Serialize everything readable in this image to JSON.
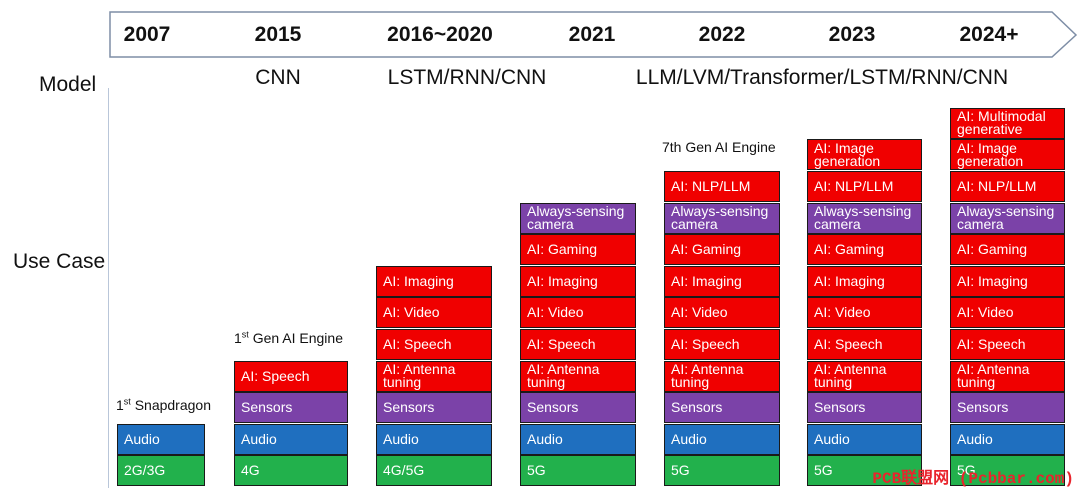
{
  "colors": {
    "connectivity": "#22b14c",
    "audio": "#1f6fbf",
    "sensors": "#7b42a8",
    "ai": "#f00000",
    "always_sensing": "#7b42a8"
  },
  "timeline": {
    "years": [
      "2007",
      "2015",
      "2016~2020",
      "2021",
      "2022",
      "2023",
      "2024+"
    ]
  },
  "labels": {
    "model": "Model",
    "use_case": "Use Case"
  },
  "models": [
    "CNN",
    "LSTM/RNN/CNN",
    "LLM/LVM/Transformer/LSTM/RNN/CNN"
  ],
  "captions": {
    "snapdragon_num": "1",
    "snapdragon_sup": "st",
    "snapdragon_text": " Snapdragon",
    "gen1_num": "1",
    "gen1_sup": "st",
    "gen1_text": " Gen AI Engine",
    "gen7": "7th Gen AI Engine"
  },
  "columns": [
    {
      "year": "2007",
      "cells": [
        {
          "text": "2G/3G",
          "kind": "connectivity"
        },
        {
          "text": "Audio",
          "kind": "audio"
        }
      ]
    },
    {
      "year": "2015",
      "cells": [
        {
          "text": "4G",
          "kind": "connectivity"
        },
        {
          "text": "Audio",
          "kind": "audio"
        },
        {
          "text": "Sensors",
          "kind": "sensors"
        },
        {
          "text": "AI: Speech",
          "kind": "ai"
        }
      ]
    },
    {
      "year": "2016~2020",
      "cells": [
        {
          "text": "4G/5G",
          "kind": "connectivity"
        },
        {
          "text": "Audio",
          "kind": "audio"
        },
        {
          "text": "Sensors",
          "kind": "sensors"
        },
        {
          "text": "AI: Antenna tuning",
          "kind": "ai"
        },
        {
          "text": "AI: Speech",
          "kind": "ai"
        },
        {
          "text": "AI: Video",
          "kind": "ai"
        },
        {
          "text": "AI: Imaging",
          "kind": "ai"
        }
      ]
    },
    {
      "year": "2021",
      "cells": [
        {
          "text": "5G",
          "kind": "connectivity"
        },
        {
          "text": "Audio",
          "kind": "audio"
        },
        {
          "text": "Sensors",
          "kind": "sensors"
        },
        {
          "text": "AI: Antenna tuning",
          "kind": "ai"
        },
        {
          "text": "AI: Speech",
          "kind": "ai"
        },
        {
          "text": "AI: Video",
          "kind": "ai"
        },
        {
          "text": "AI: Imaging",
          "kind": "ai"
        },
        {
          "text": "AI: Gaming",
          "kind": "ai"
        },
        {
          "text": "Always-sensing camera",
          "kind": "always_sensing"
        }
      ]
    },
    {
      "year": "2022",
      "cells": [
        {
          "text": "5G",
          "kind": "connectivity"
        },
        {
          "text": "Audio",
          "kind": "audio"
        },
        {
          "text": "Sensors",
          "kind": "sensors"
        },
        {
          "text": "AI: Antenna tuning",
          "kind": "ai"
        },
        {
          "text": "AI: Speech",
          "kind": "ai"
        },
        {
          "text": "AI: Video",
          "kind": "ai"
        },
        {
          "text": "AI: Imaging",
          "kind": "ai"
        },
        {
          "text": "AI: Gaming",
          "kind": "ai"
        },
        {
          "text": "Always-sensing camera",
          "kind": "always_sensing"
        },
        {
          "text": "AI: NLP/LLM",
          "kind": "ai"
        }
      ]
    },
    {
      "year": "2023",
      "cells": [
        {
          "text": "5G",
          "kind": "connectivity"
        },
        {
          "text": "Audio",
          "kind": "audio"
        },
        {
          "text": "Sensors",
          "kind": "sensors"
        },
        {
          "text": "AI: Antenna tuning",
          "kind": "ai"
        },
        {
          "text": "AI: Speech",
          "kind": "ai"
        },
        {
          "text": "AI: Video",
          "kind": "ai"
        },
        {
          "text": "AI: Imaging",
          "kind": "ai"
        },
        {
          "text": "AI: Gaming",
          "kind": "ai"
        },
        {
          "text": "Always-sensing camera",
          "kind": "always_sensing"
        },
        {
          "text": "AI: NLP/LLM",
          "kind": "ai"
        },
        {
          "text": "AI: Image generation",
          "kind": "ai"
        }
      ]
    },
    {
      "year": "2024+",
      "cells": [
        {
          "text": "5G",
          "kind": "connectivity"
        },
        {
          "text": "Audio",
          "kind": "audio"
        },
        {
          "text": "Sensors",
          "kind": "sensors"
        },
        {
          "text": "AI: Antenna tuning",
          "kind": "ai"
        },
        {
          "text": "AI: Speech",
          "kind": "ai"
        },
        {
          "text": "AI: Video",
          "kind": "ai"
        },
        {
          "text": "AI: Imaging",
          "kind": "ai"
        },
        {
          "text": "AI: Gaming",
          "kind": "ai"
        },
        {
          "text": "Always-sensing camera",
          "kind": "always_sensing"
        },
        {
          "text": "AI: NLP/LLM",
          "kind": "ai"
        },
        {
          "text": "AI: Image generation",
          "kind": "ai"
        },
        {
          "text": "AI: Multimodal generative",
          "kind": "ai"
        }
      ]
    }
  ],
  "watermark": "PCB联盟网 (Pcbbar.com)"
}
